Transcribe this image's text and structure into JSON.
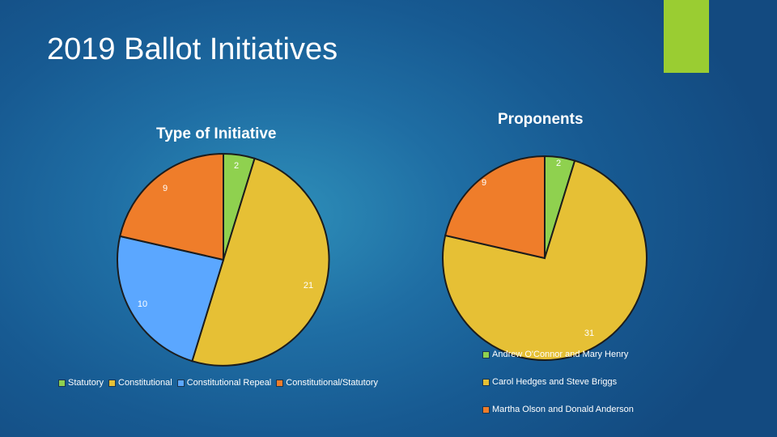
{
  "slide": {
    "title": "2019 Ballot Initiatives",
    "accent_color": "#9acd32"
  },
  "chart_data": [
    {
      "type": "pie",
      "title": "Type of Initiative",
      "categories": [
        "Statutory",
        "Constitutional",
        "Constitutional Repeal",
        "Constitutional/Statutory"
      ],
      "values": [
        2,
        21,
        10,
        9
      ],
      "colors": [
        "#8fd14f",
        "#e6c035",
        "#5ba7ff",
        "#ef7d2a"
      ],
      "legend": "bottom"
    },
    {
      "type": "pie",
      "title": "Proponents",
      "categories": [
        "Andrew O'Connor and Mary Henry",
        "Carol Hedges and Steve Briggs",
        "Martha Olson and Donald Anderson"
      ],
      "values": [
        2,
        31,
        9
      ],
      "colors": [
        "#8fd14f",
        "#e6c035",
        "#ef7d2a"
      ],
      "legend": "right"
    }
  ]
}
